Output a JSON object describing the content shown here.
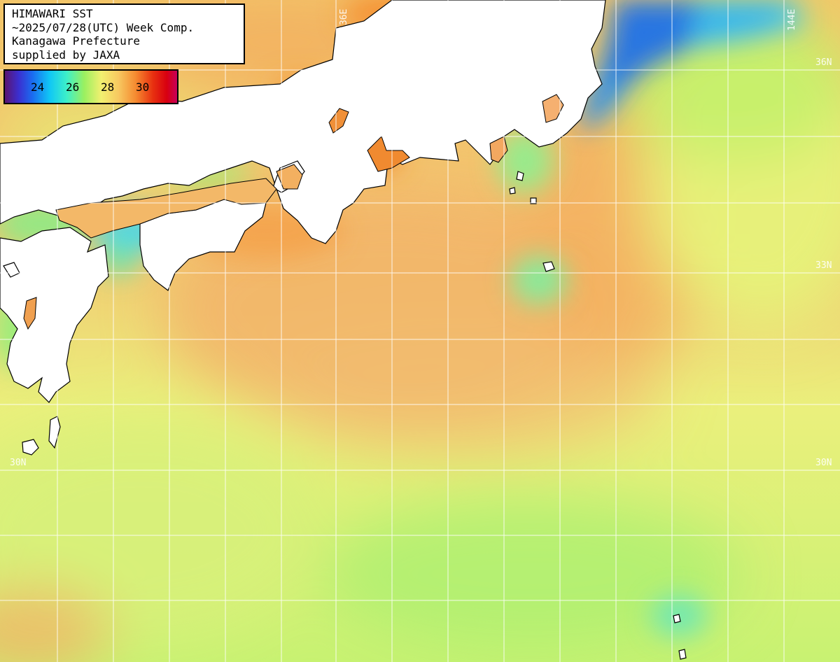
{
  "header": {
    "lines": [
      "HIMAWARI SST",
      "~2025/07/28(UTC) Week Comp.",
      "Kanagawa Prefecture",
      "supplied by JAXA"
    ]
  },
  "color_scale": {
    "labels": [
      "24",
      "26",
      "28",
      "30"
    ]
  },
  "grid_labels": {
    "lon_136": "136E",
    "lon_144": "144E",
    "lat_36": "36N",
    "lat_33": "33N",
    "lat_30_left": "30N",
    "lat_30_right": "30N"
  },
  "colors": {
    "land": "#ffffff",
    "coastline": "#000000",
    "grid": "#ffffff",
    "warm_water": "#f5b060",
    "moderate_water": "#eef07a",
    "cool_water": "#90f070",
    "cold_water": "#1f6cf0"
  }
}
